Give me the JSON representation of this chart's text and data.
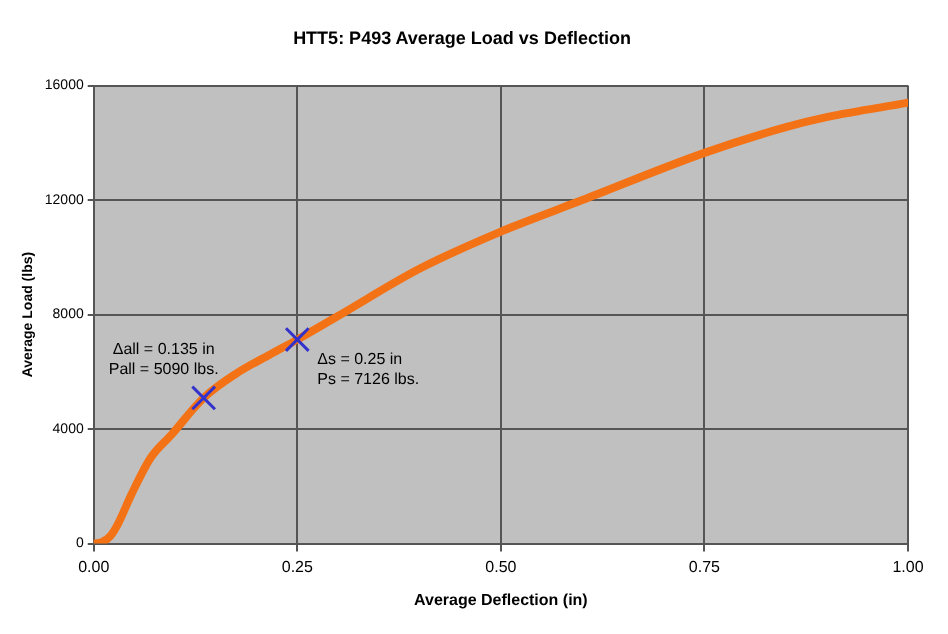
{
  "chart_data": {
    "type": "line",
    "title": "HTT5: P493 Average Load vs Deflection",
    "xlabel": "Average Deflection (in)",
    "ylabel": "Average Load (lbs)",
    "xlim": [
      0,
      1
    ],
    "xticks": [
      {
        "value": 0,
        "label": "0.00"
      },
      {
        "value": 0.25,
        "label": "0.25"
      },
      {
        "value": 0.5,
        "label": "0.50"
      },
      {
        "value": 0.75,
        "label": "0.75"
      },
      {
        "value": 1,
        "label": "1.00"
      }
    ],
    "ylim": [
      0,
      16000
    ],
    "yticks": [
      0,
      4000,
      8000,
      12000,
      16000
    ],
    "grid": true,
    "legend": false,
    "series": [
      {
        "color": "#f47216",
        "marker": "none",
        "line_style": "solid",
        "x": [
          0,
          0.01,
          0.02,
          0.03,
          0.046,
          0.07,
          0.095,
          0.135,
          0.175,
          0.216,
          0.25,
          0.3,
          0.4,
          0.5,
          0.6,
          0.75,
          0.85,
          0.9,
          1.0
        ],
        "values": [
          0,
          50,
          250,
          700,
          1700,
          3000,
          3790,
          5090,
          5940,
          6600,
          7126,
          7950,
          9600,
          10900,
          12000,
          13650,
          14550,
          14900,
          15400
        ]
      },
      {
        "type": "scatter",
        "color": "#3333cc",
        "marker": "cross",
        "x": [
          0.135,
          0.25
        ],
        "values": [
          5090,
          7126
        ]
      }
    ],
    "annotations": [
      {
        "text": "Δall = 0.135 in\nPall = 5090 lbs.",
        "x": 0.135,
        "y": 5090
      },
      {
        "text": "Δs = 0.25 in\nPs = 7126 lbs.",
        "x": 0.25,
        "y": 7126
      }
    ]
  }
}
